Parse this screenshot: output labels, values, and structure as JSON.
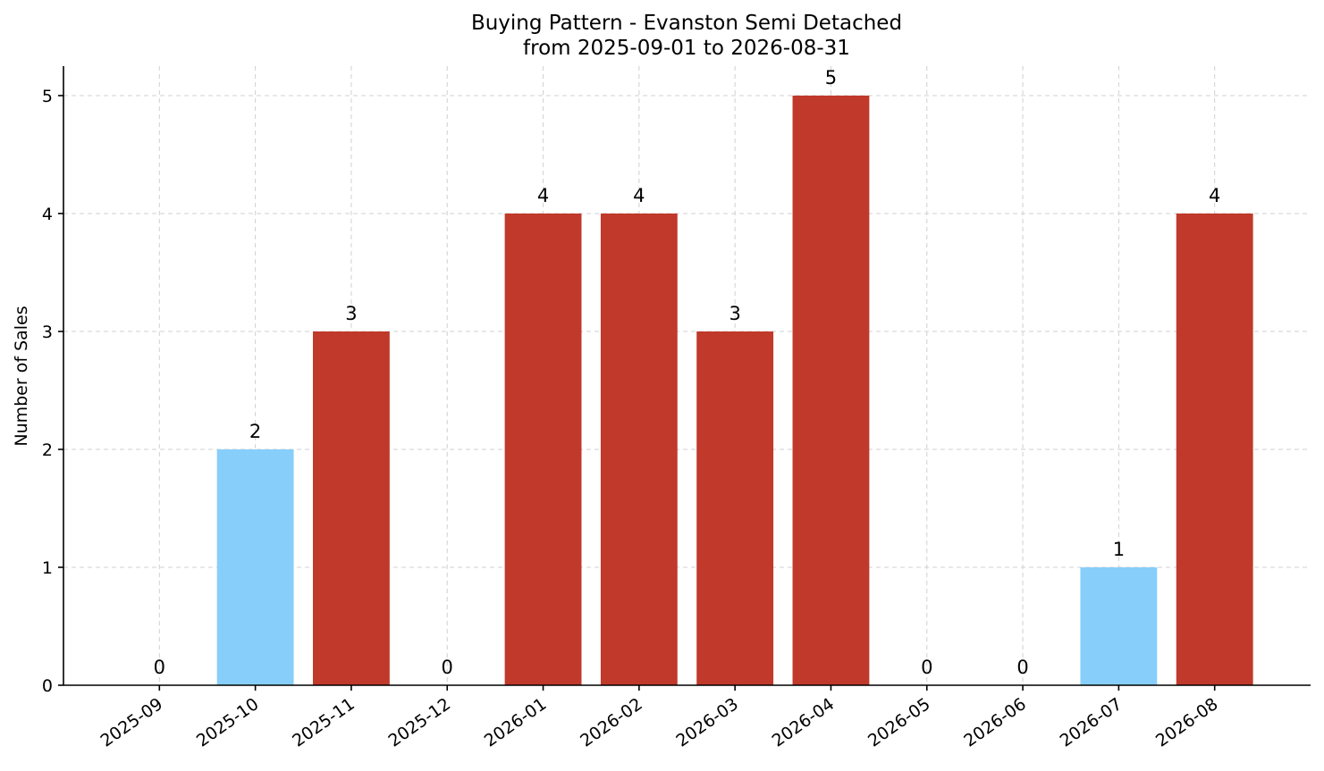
{
  "chart_data": {
    "type": "bar",
    "title": "Buying Pattern - Evanston Semi Detached",
    "subtitle": "from 2025-09-01 to 2026-08-31",
    "xlabel": "",
    "ylabel": "Number of Sales",
    "categories": [
      "2025-09",
      "2025-10",
      "2025-11",
      "2025-12",
      "2026-01",
      "2026-02",
      "2026-03",
      "2026-04",
      "2026-05",
      "2026-06",
      "2026-07",
      "2026-08"
    ],
    "values": [
      0,
      2,
      3,
      0,
      4,
      4,
      3,
      5,
      0,
      0,
      1,
      4
    ],
    "bar_colors": [
      "#c0392b",
      "#87cefa",
      "#c0392b",
      "#c0392b",
      "#c0392b",
      "#c0392b",
      "#c0392b",
      "#c0392b",
      "#c0392b",
      "#c0392b",
      "#87cefa",
      "#c0392b"
    ],
    "ylim": [
      0,
      5.25
    ],
    "yticks": [
      0,
      1,
      2,
      3,
      4,
      5
    ],
    "grid": true,
    "legend": "none",
    "colors": {
      "high": "#c0392b",
      "low": "#87cefa"
    }
  }
}
